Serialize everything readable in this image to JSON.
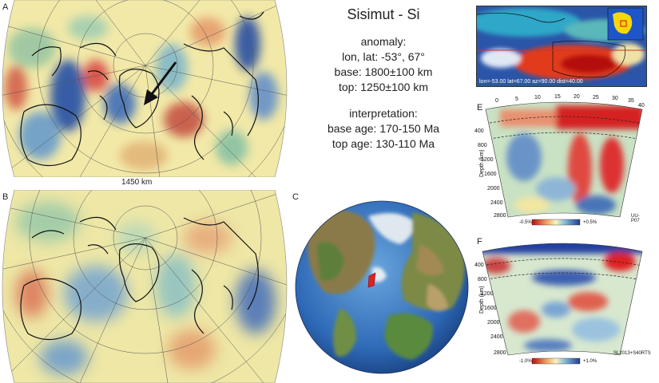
{
  "panels": {
    "a": "A",
    "b": "B",
    "c": "C",
    "e": "E",
    "f": "F"
  },
  "map_a": {
    "scale_label": "1450 km"
  },
  "info": {
    "title": "Sisimut - Si",
    "anomaly_heading": "anomaly:",
    "lonlat": "lon, lat: -53°, 67°",
    "base": "base: 1800±100 km",
    "top": "top: 1250±100 km",
    "interpretation_heading": "interpretation:",
    "base_age": "base age:  170-150 Ma",
    "top_age": "top age: 130-110 Ma"
  },
  "inset": {
    "caption": "lon=-53.00 lat=67.00 az=90.00 dist=40.00"
  },
  "section_e": {
    "model": "UU-P07",
    "depth_label": "Depth (km)",
    "x_ticks": [
      "0",
      "5",
      "10",
      "15",
      "20",
      "25",
      "30",
      "35",
      "40"
    ],
    "depth_ticks": [
      "400",
      "800",
      "1200",
      "1600",
      "2000",
      "2400",
      "2800"
    ],
    "cbar_min": "-0.5%",
    "cbar_max": "+0.5%"
  },
  "section_f": {
    "model": "SL2013+S40RTS",
    "depth_label": "Depth (km)",
    "depth_ticks": [
      "400",
      "800",
      "1200",
      "1600",
      "2000",
      "2400",
      "2800"
    ],
    "cbar_min": "-1.0%",
    "cbar_max": "+1.0%"
  },
  "colors": {
    "slow": "#c8102e",
    "neutral": "#f4f0b8",
    "fast": "#1f3f9a",
    "ocean": "#3f7fc7"
  }
}
